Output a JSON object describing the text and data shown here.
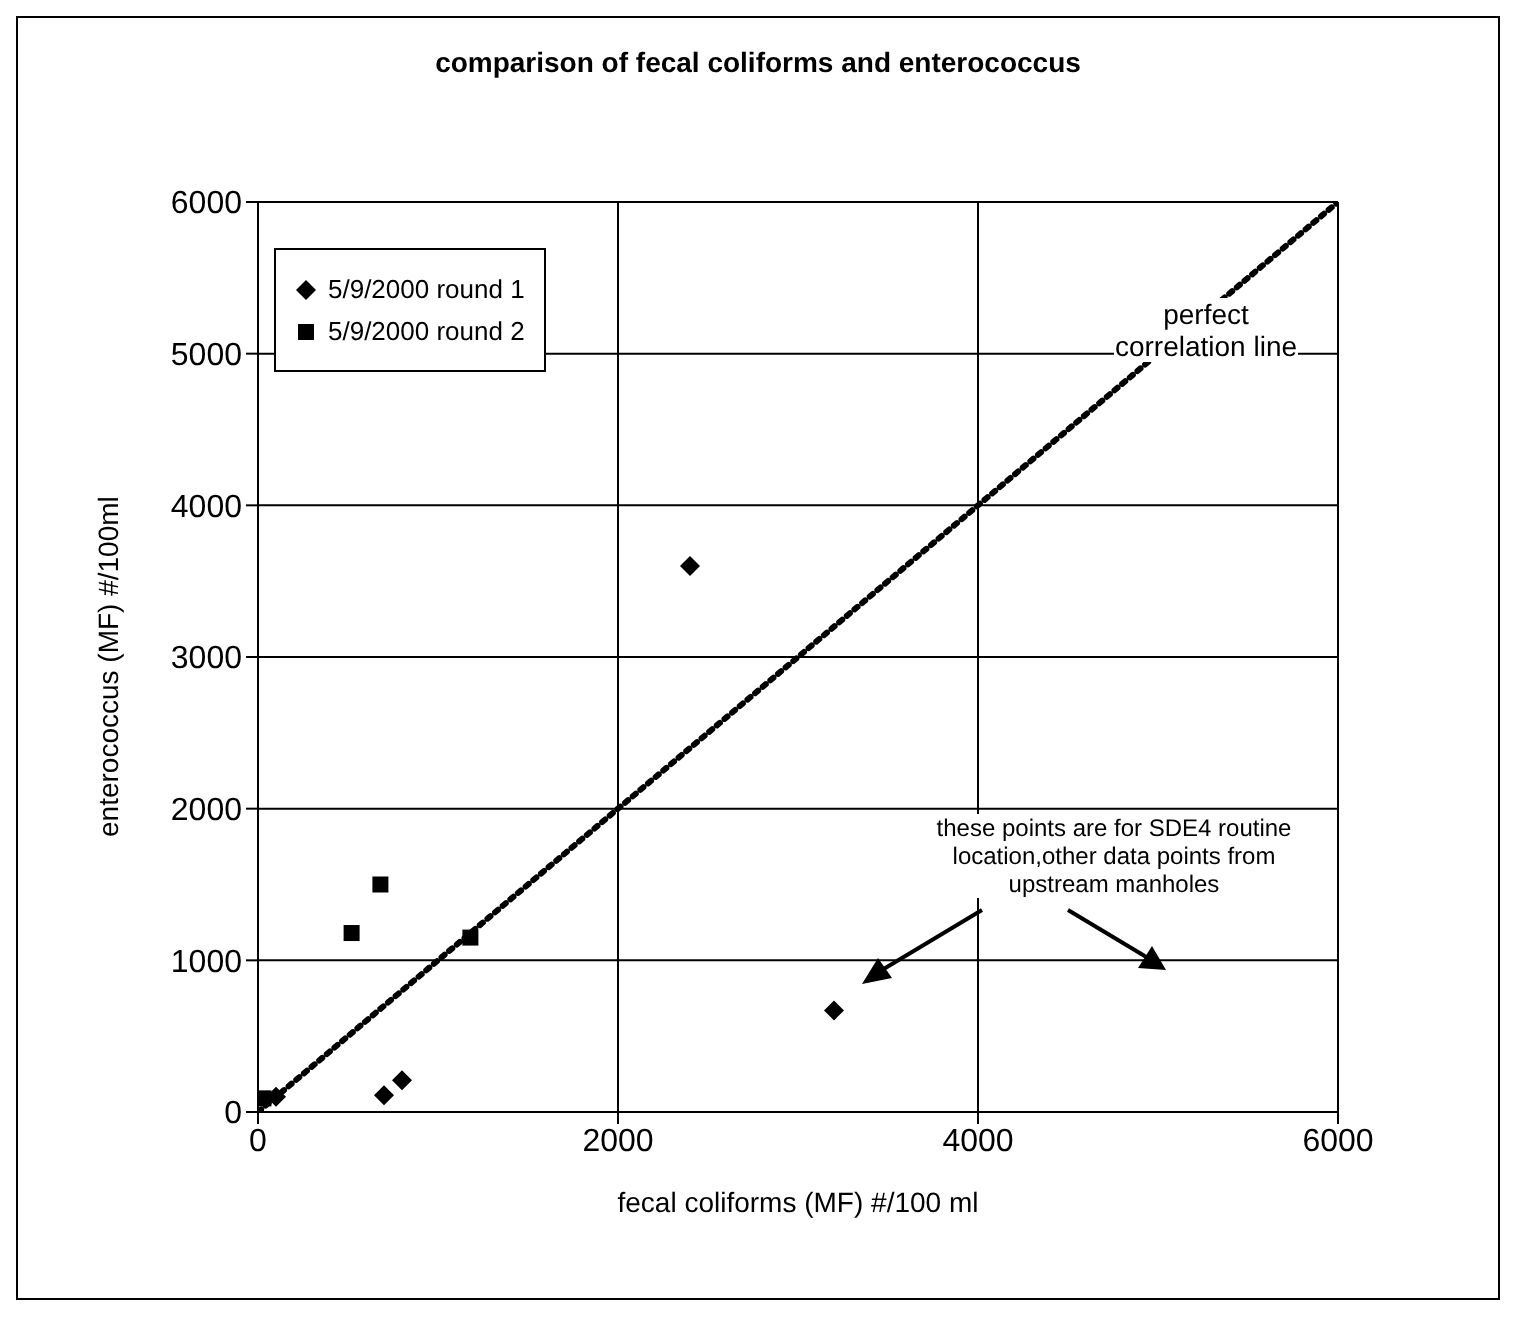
{
  "chart_data": {
    "type": "scatter",
    "title": "comparison of fecal coliforms and enterococcus",
    "xlabel": "fecal coliforms (MF) #/100 ml",
    "ylabel": "enterococcus (MF) #/100ml",
    "xlim": [
      0,
      6000
    ],
    "xticks": [
      0,
      2000,
      4000,
      6000
    ],
    "ylim": [
      0,
      6000
    ],
    "yticks": [
      0,
      1000,
      2000,
      3000,
      4000,
      5000,
      6000
    ],
    "grid": true,
    "legend": "top left",
    "series": [
      {
        "name": "5/9/2000 round 1",
        "type": "scatter",
        "marker": "diamond",
        "color": "#000000",
        "x": [
          100,
          700,
          800,
          2400,
          3200
        ],
        "values": [
          100,
          110,
          210,
          3600,
          670
        ]
      },
      {
        "name": "5/9/2000 round 2",
        "type": "scatter",
        "marker": "square",
        "color": "#000000",
        "x": [
          30,
          520,
          680,
          1180
        ],
        "values": [
          90,
          1180,
          1500,
          1150
        ]
      },
      {
        "type": "line",
        "marker": "none",
        "line_style": "dotted",
        "color": "#000000",
        "x": [
          0,
          6000
        ],
        "values": [
          0,
          6000
        ]
      }
    ],
    "annotations": [
      "perfect correlation line",
      "these points are for SDE4 routine location,other data points from upstream manholes"
    ]
  }
}
